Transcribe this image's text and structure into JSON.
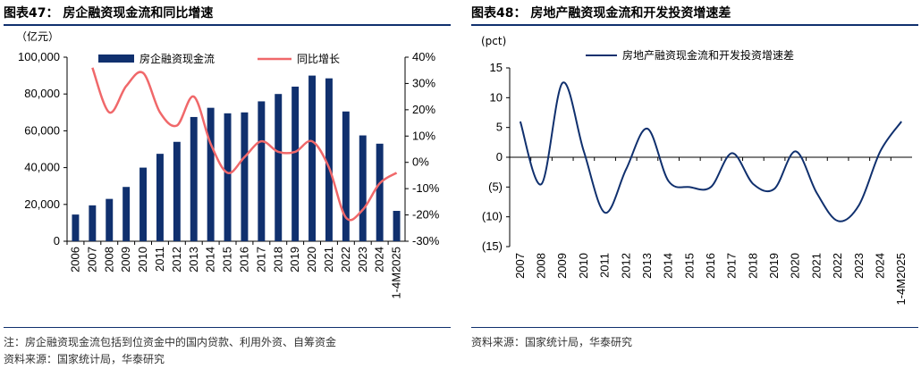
{
  "left": {
    "title": "图表47：  房企融资现金流和同比增速",
    "footnote": "注：房企融资现金流包括到位资金中的国内贷款、利用外资、自筹资金",
    "source": "资料来源：国家统计局，华泰研究"
  },
  "right": {
    "title": "图表48：  房地产融资现金流和开发投资增速差",
    "source": "资料来源：国家统计局，华泰研究"
  },
  "colors": {
    "bar": "#10306e",
    "line_red": "#f0686a",
    "line_navy": "#10306e",
    "rule": "#10306e"
  },
  "chart_data": [
    {
      "type": "bar",
      "title": "房企融资现金流和同比增速",
      "y_unit": "（亿元）",
      "categories": [
        "2006",
        "2007",
        "2008",
        "2009",
        "2010",
        "2011",
        "2012",
        "2013",
        "2014",
        "2015",
        "2016",
        "2017",
        "2018",
        "2019",
        "2020",
        "2021",
        "2022",
        "2023",
        "2024",
        "1-4M2025"
      ],
      "ylim": [
        0,
        100000
      ],
      "yticks": [
        "0",
        "20,000",
        "40,000",
        "60,000",
        "80,000",
        "100,000"
      ],
      "y2lim": [
        -30,
        40
      ],
      "y2ticks": [
        "-30%",
        "-20%",
        "-10%",
        "0%",
        "10%",
        "20%",
        "30%",
        "40%"
      ],
      "series": [
        {
          "name": "房企融资现金流",
          "kind": "bar",
          "axis": "left",
          "values": [
            14500,
            19500,
            23000,
            29500,
            40000,
            47500,
            54000,
            67500,
            72500,
            69500,
            70000,
            76000,
            80000,
            84000,
            90000,
            88500,
            70500,
            57500,
            53000,
            16500
          ]
        },
        {
          "name": "同比增长",
          "kind": "line",
          "axis": "right",
          "values": [
            null,
            36,
            19,
            29,
            34,
            19,
            14,
            25,
            7,
            -4,
            2,
            8,
            4,
            4,
            8,
            -2,
            -21,
            -18,
            -8,
            -4
          ]
        }
      ],
      "legend": "top"
    },
    {
      "type": "line",
      "title": "房地产融资现金流和开发投资增速差",
      "y_unit": "(pct)",
      "categories": [
        "2007",
        "2008",
        "2009",
        "2010",
        "2011",
        "2012",
        "2013",
        "2014",
        "2015",
        "2016",
        "2017",
        "2018",
        "2019",
        "2020",
        "2021",
        "2022",
        "2023",
        "2024",
        "1-4M2025"
      ],
      "ylim": [
        -15,
        15
      ],
      "yticks": [
        "15",
        "10",
        "5",
        "0",
        "(5)",
        "(10)",
        "(15)"
      ],
      "series": [
        {
          "name": "房地产融资现金流和开发投资增速差",
          "values": [
            6,
            -4.5,
            12.5,
            1,
            -9.3,
            -2,
            4.8,
            -4,
            -5,
            -5,
            0.7,
            -4.5,
            -5.3,
            1,
            -6,
            -10.7,
            -8,
            1,
            6
          ]
        }
      ],
      "legend": "top"
    }
  ]
}
